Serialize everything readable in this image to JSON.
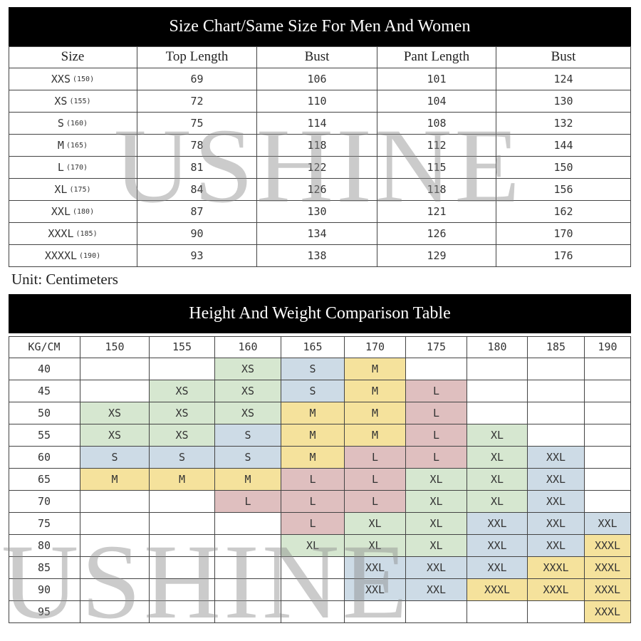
{
  "size_chart": {
    "title": "Size Chart/Same Size For Men And Women",
    "header": [
      "Size",
      "Top Length",
      "Bust",
      "Pant Length",
      "Bust"
    ],
    "rows": [
      [
        "XXS",
        "(150)",
        69,
        106,
        101,
        124
      ],
      [
        "XS",
        "(155)",
        72,
        110,
        104,
        130
      ],
      [
        "S",
        "(160)",
        75,
        114,
        108,
        132
      ],
      [
        "M",
        "(165)",
        78,
        118,
        112,
        144
      ],
      [
        "L",
        "(170)",
        81,
        122,
        115,
        150
      ],
      [
        "XL",
        "(175)",
        84,
        126,
        118,
        156
      ],
      [
        "XXL",
        "(180)",
        87,
        130,
        121,
        162
      ],
      [
        "XXXL",
        "(185)",
        90,
        134,
        126,
        170
      ],
      [
        "XXXXL",
        "(190)",
        93,
        138,
        129,
        176
      ]
    ],
    "unit": "Unit: Centimeters"
  },
  "comparison": {
    "title": "Height And Weight Comparison Table",
    "corner": "KG/CM",
    "heights": [
      150,
      155,
      160,
      165,
      170,
      175,
      180,
      185,
      190
    ],
    "weights": [
      40,
      45,
      50,
      55,
      60,
      65,
      70,
      75,
      80,
      85,
      90,
      95
    ],
    "sizes": [
      [
        null,
        null,
        "XS",
        "S",
        "M",
        null,
        null,
        null,
        null
      ],
      [
        null,
        "XS",
        "XS",
        "S",
        "M",
        "L",
        null,
        null,
        null
      ],
      [
        "XS",
        "XS",
        "XS",
        "M",
        "M",
        "L",
        null,
        null,
        null
      ],
      [
        "XS",
        "XS",
        "S",
        "M",
        "M",
        "L",
        "XL",
        null,
        null
      ],
      [
        "S",
        "S",
        "S",
        "M",
        "L",
        "L",
        "XL",
        "XXL",
        null
      ],
      [
        "M",
        "M",
        "M",
        "L",
        "L",
        "XL",
        "XL",
        "XXL",
        null
      ],
      [
        null,
        null,
        "L",
        "L",
        "L",
        "XL",
        "XL",
        "XXL",
        null
      ],
      [
        null,
        null,
        null,
        "L",
        "XL",
        "XL",
        "XXL",
        "XXL",
        "XXL"
      ],
      [
        null,
        null,
        null,
        "XL",
        "XL",
        "XL",
        "XXL",
        "XXL",
        "XXXL"
      ],
      [
        null,
        null,
        null,
        null,
        "XXL",
        "XXL",
        "XXL",
        "XXXL",
        "XXXL"
      ],
      [
        null,
        null,
        null,
        null,
        "XXL",
        "XXL",
        "XXXL",
        "XXXL",
        "XXXL"
      ],
      [
        null,
        null,
        null,
        null,
        null,
        null,
        null,
        null,
        "XXXL"
      ]
    ],
    "colors": {
      "XS": "#d6e7d0",
      "S": "#cddbe6",
      "M": "#f5e29c",
      "L": "#dfbfbf",
      "XL": "#d6e7d0",
      "XXL": "#cddbe6",
      "XXXL": "#f5e29c"
    }
  },
  "watermark": "USHINE"
}
